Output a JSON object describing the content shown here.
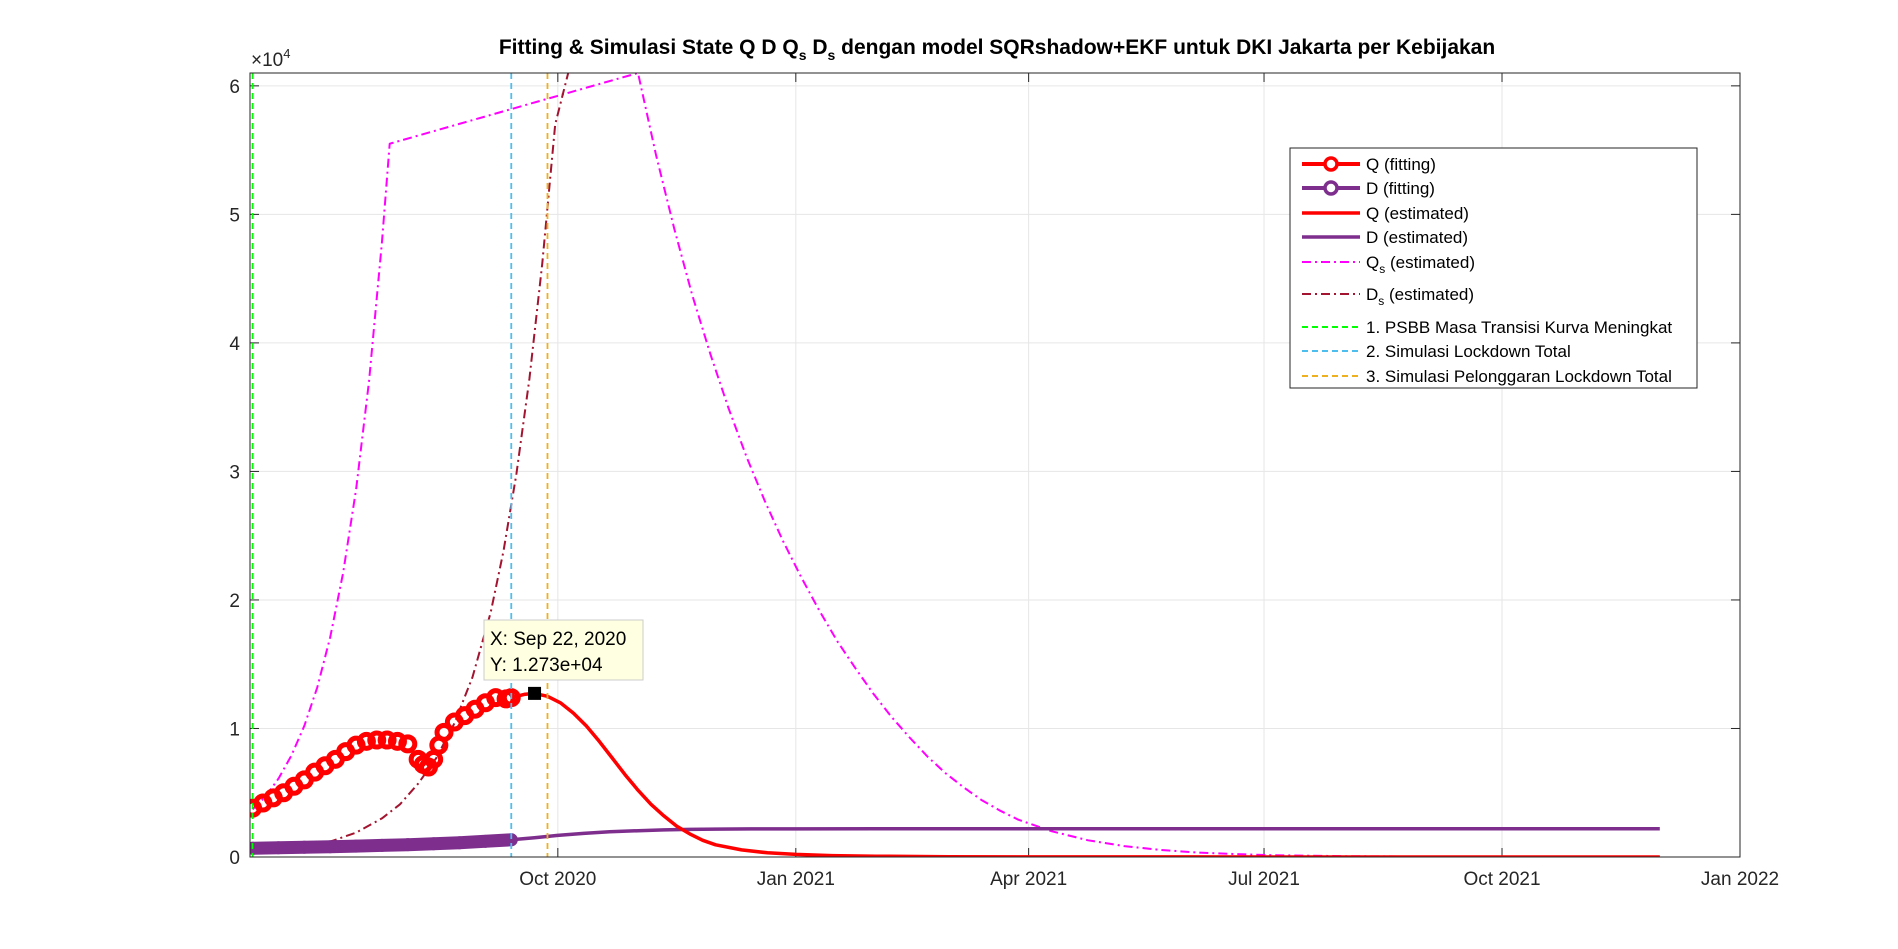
{
  "figure": {
    "title_prefix": "Fitting & Simulasi State  Q D Q",
    "title_sub_qs": "s",
    "title_mid_d": " D",
    "title_sub_ds": "s",
    "title_suffix": " dengan model SQRshadow+EKF untuk DKI Jakarta per Kebijakan",
    "exponent_prefix": "×10",
    "exponent_power": "4"
  },
  "colors": {
    "q": "#ff0000",
    "d": "#7e2f8e",
    "qs": "#ff00ff",
    "ds": "#a2142f",
    "policy1": "#00ff00",
    "policy2": "#4dbeee",
    "policy3": "#edb120",
    "grid": "#e6e6e6",
    "axis": "#262626"
  },
  "legend": {
    "items": [
      {
        "key": "q_fit",
        "label": "Q (fitting)",
        "sub": ""
      },
      {
        "key": "d_fit",
        "label": "D (fitting)",
        "sub": ""
      },
      {
        "key": "q_est",
        "label": "Q (estimated)",
        "sub": ""
      },
      {
        "key": "d_est",
        "label": "D (estimated)",
        "sub": ""
      },
      {
        "key": "qs_est",
        "label": "Q",
        "sub": "s",
        "suffix": " (estimated)"
      },
      {
        "key": "ds_est",
        "label": "D",
        "sub": "s",
        "suffix": " (estimated)"
      },
      {
        "key": "p1",
        "label": "1. PSBB Masa Transisi Kurva Meningkat",
        "sub": ""
      },
      {
        "key": "p2",
        "label": "2. Simulasi Lockdown Total",
        "sub": ""
      },
      {
        "key": "p3",
        "label": "3. Simulasi Pelonggaran Lockdown Total",
        "sub": ""
      }
    ]
  },
  "datatip": {
    "x_line": "X: Sep 22, 2020",
    "y_line": "Y: 1.273e+04",
    "x": "2020-09-22",
    "y": 12730
  },
  "chart_data": {
    "type": "line",
    "title": "Fitting & Simulasi State Q D Qs Ds dengan model SQRshadow+EKF untuk DKI Jakarta per Kebijakan",
    "xlabel": "",
    "ylabel": "",
    "xlim": [
      "2020-06-04",
      "2022-01-01"
    ],
    "ylim": [
      0,
      61000
    ],
    "x_ticks": [
      "Oct 2020",
      "Jan 2021",
      "Apr 2021",
      "Jul 2021",
      "Oct 2021",
      "Jan 2022"
    ],
    "x_tick_dates": [
      "2020-10-01",
      "2021-01-01",
      "2021-04-01",
      "2021-07-01",
      "2021-10-01",
      "2022-01-01"
    ],
    "y_ticks": [
      0,
      1,
      2,
      3,
      4,
      5,
      6
    ],
    "y_tick_values": [
      0,
      10000,
      20000,
      30000,
      40000,
      50000,
      60000
    ],
    "grid": true,
    "legend_position": "top-right",
    "policy_lines": [
      {
        "name": "1. PSBB Masa Transisi Kurva Meningkat",
        "date": "2020-06-05"
      },
      {
        "name": "2. Simulasi Lockdown Total",
        "date": "2020-09-13"
      },
      {
        "name": "3. Simulasi Pelonggaran Lockdown Total",
        "date": "2020-09-27"
      }
    ],
    "series": [
      {
        "name": "Q (fitting)",
        "style": "markers",
        "x": [
          "2020-06-05",
          "2020-06-09",
          "2020-06-13",
          "2020-06-17",
          "2020-06-21",
          "2020-06-25",
          "2020-06-29",
          "2020-07-03",
          "2020-07-07",
          "2020-07-11",
          "2020-07-15",
          "2020-07-19",
          "2020-07-23",
          "2020-07-27",
          "2020-07-31",
          "2020-08-04",
          "2020-08-08",
          "2020-08-10",
          "2020-08-12",
          "2020-08-14",
          "2020-08-16",
          "2020-08-18",
          "2020-08-22",
          "2020-08-26",
          "2020-08-30",
          "2020-09-03",
          "2020-09-07",
          "2020-09-11",
          "2020-09-13"
        ],
        "y": [
          3800,
          4200,
          4600,
          5000,
          5500,
          6000,
          6600,
          7100,
          7600,
          8200,
          8700,
          9000,
          9100,
          9100,
          9000,
          8800,
          7600,
          7200,
          7000,
          7600,
          8700,
          9700,
          10500,
          11000,
          11500,
          12000,
          12400,
          12300,
          12400
        ]
      },
      {
        "name": "D (fitting)",
        "style": "markers",
        "x": [
          "2020-06-05",
          "2020-06-15",
          "2020-06-25",
          "2020-07-05",
          "2020-07-15",
          "2020-07-25",
          "2020-08-04",
          "2020-08-14",
          "2020-08-24",
          "2020-09-03",
          "2020-09-13"
        ],
        "y": [
          680,
          720,
          760,
          800,
          850,
          900,
          960,
          1030,
          1110,
          1220,
          1340
        ]
      },
      {
        "name": "Q (estimated)",
        "style": "solid",
        "x": [
          "2020-09-13",
          "2020-09-18",
          "2020-09-22",
          "2020-09-27",
          "2020-10-02",
          "2020-10-07",
          "2020-10-12",
          "2020-10-17",
          "2020-10-22",
          "2020-10-27",
          "2020-11-01",
          "2020-11-06",
          "2020-11-11",
          "2020-11-16",
          "2020-11-21",
          "2020-11-26",
          "2020-12-01",
          "2020-12-11",
          "2020-12-21",
          "2021-01-01",
          "2021-01-15",
          "2021-02-01",
          "2021-03-01",
          "2021-04-01",
          "2021-06-01",
          "2021-08-01",
          "2021-10-01",
          "2021-12-01"
        ],
        "y": [
          12400,
          12650,
          12730,
          12500,
          12000,
          11200,
          10200,
          9000,
          7700,
          6400,
          5200,
          4100,
          3200,
          2400,
          1800,
          1300,
          950,
          550,
          330,
          200,
          110,
          60,
          25,
          10,
          5,
          3,
          2,
          2
        ]
      },
      {
        "name": "D (estimated)",
        "style": "solid",
        "x": [
          "2020-09-13",
          "2020-09-22",
          "2020-10-01",
          "2020-10-11",
          "2020-10-21",
          "2020-11-01",
          "2020-11-11",
          "2020-11-21",
          "2020-12-01",
          "2020-12-15",
          "2021-01-01",
          "2021-02-01",
          "2021-04-01",
          "2021-07-01",
          "2021-10-01",
          "2021-12-01"
        ],
        "y": [
          1340,
          1500,
          1680,
          1840,
          1960,
          2050,
          2110,
          2150,
          2170,
          2185,
          2190,
          2195,
          2200,
          2200,
          2200,
          2200
        ]
      },
      {
        "name": "Qs (estimated)",
        "style": "dashdot",
        "x": [
          "2020-06-05",
          "2020-06-10",
          "2020-06-15",
          "2020-06-20",
          "2020-06-25",
          "2020-06-30",
          "2020-07-05",
          "2020-07-10",
          "2020-07-15",
          "2020-07-20",
          "2020-07-25",
          "2020-07-28",
          "2020-11-01",
          "2020-11-08",
          "2020-11-15",
          "2020-11-22",
          "2020-11-29",
          "2020-12-06",
          "2020-12-13",
          "2020-12-20",
          "2020-12-27",
          "2021-01-03",
          "2021-01-10",
          "2021-01-17",
          "2021-01-24",
          "2021-01-31",
          "2021-02-07",
          "2021-02-14",
          "2021-02-21",
          "2021-02-28",
          "2021-03-07",
          "2021-03-14",
          "2021-03-21",
          "2021-03-28",
          "2021-04-10",
          "2021-04-24",
          "2021-05-08",
          "2021-05-22",
          "2021-06-05",
          "2021-06-19",
          "2021-07-03",
          "2021-08-01",
          "2021-10-01",
          "2021-12-01"
        ],
        "y": [
          3700,
          4700,
          6100,
          7900,
          10200,
          13200,
          17100,
          22100,
          28600,
          37000,
          47800,
          55500,
          61000,
          54600,
          48900,
          43700,
          39100,
          34900,
          31100,
          27700,
          24600,
          21800,
          19200,
          16800,
          14700,
          12700,
          10900,
          9300,
          7800,
          6500,
          5400,
          4400,
          3600,
          2900,
          2000,
          1300,
          850,
          550,
          350,
          230,
          150,
          60,
          10,
          5
        ]
      },
      {
        "name": "Ds (estimated)",
        "style": "dashdot",
        "x": [
          "2020-06-05",
          "2020-06-15",
          "2020-06-25",
          "2020-07-05",
          "2020-07-15",
          "2020-07-25",
          "2020-08-01",
          "2020-08-08",
          "2020-08-15",
          "2020-08-22",
          "2020-08-29",
          "2020-09-05",
          "2020-09-10",
          "2020-09-15",
          "2020-09-20",
          "2020-09-25",
          "2020-09-30",
          "2020-10-05"
        ],
        "y": [
          500,
          600,
          800,
          1200,
          1900,
          3000,
          4100,
          5700,
          7700,
          10400,
          14000,
          19000,
          23800,
          29800,
          37200,
          46200,
          57000,
          61000
        ]
      }
    ]
  }
}
